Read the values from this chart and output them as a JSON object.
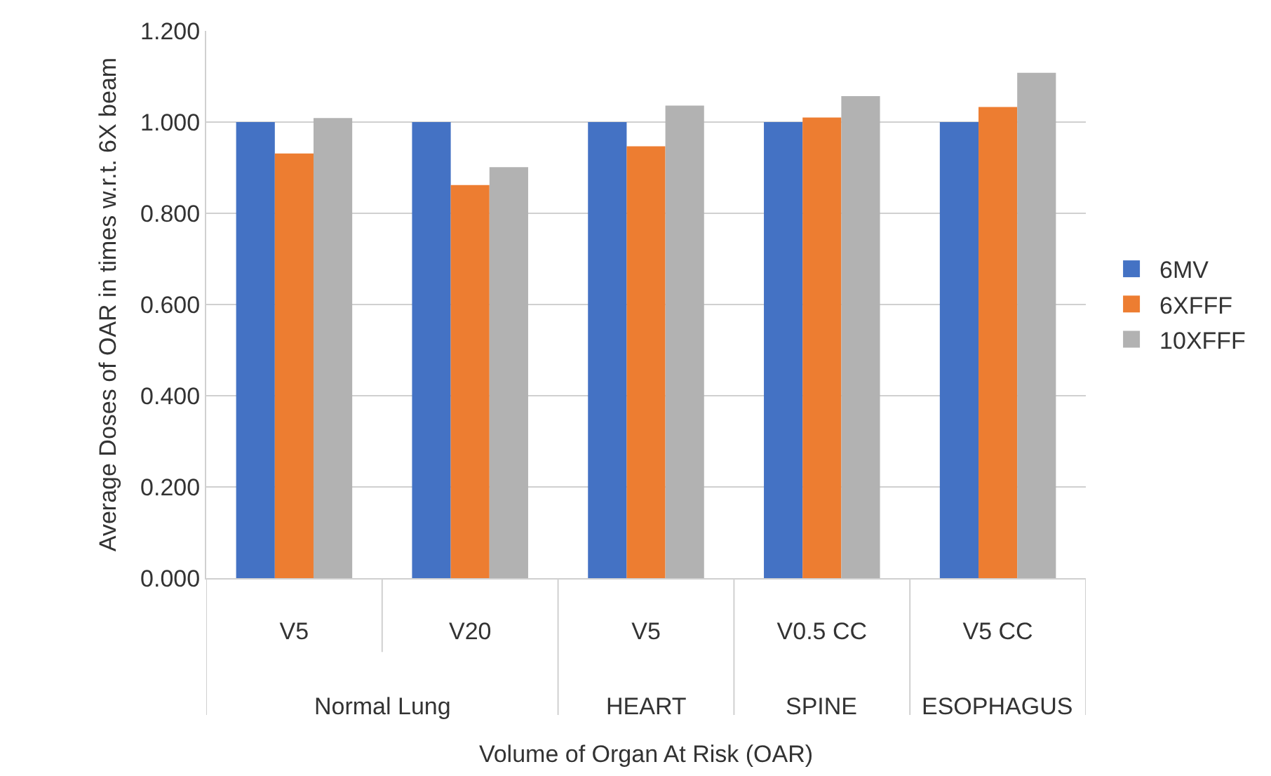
{
  "chart_data": {
    "type": "bar",
    "xlabel": "Volume of Organ At Risk (OAR)",
    "ylabel": "Average Doses of OAR in times w.r.t. 6X beam",
    "categories": [
      "V5",
      "V20",
      "V5",
      "V0.5 CC",
      "V5 CC"
    ],
    "series": [
      {
        "name": "6MV",
        "color": "#4472c4",
        "values": [
          1.0,
          1.0,
          1.0,
          1.0,
          1.0
        ]
      },
      {
        "name": "6XFFF",
        "color": "#ed7d31",
        "values": [
          0.931,
          0.862,
          0.947,
          1.01,
          1.033
        ]
      },
      {
        "name": "10XFFF",
        "color": "#b2b2b2",
        "values": [
          1.009,
          0.901,
          1.036,
          1.057,
          1.108
        ]
      }
    ],
    "annotations": [
      "Normal Lung",
      "HEART",
      "SPINE",
      "ESOPHAGUS"
    ],
    "ylim": [
      0,
      1.2
    ],
    "yticks": [
      {
        "value": 0,
        "label": "0.000"
      },
      {
        "value": 0.2,
        "label": "0.200"
      },
      {
        "value": 0.4,
        "label": "0.400"
      },
      {
        "value": 0.6,
        "label": "0.600"
      },
      {
        "value": 0.8,
        "label": "0.800"
      },
      {
        "value": 1.0,
        "label": "1.000"
      },
      {
        "value": 1.2,
        "label": "1.200"
      }
    ],
    "grid": "y",
    "legend": "right"
  }
}
